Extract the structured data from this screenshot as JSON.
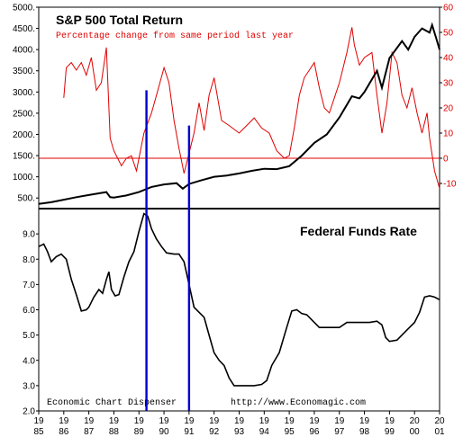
{
  "colors": {
    "background": "#ffffff",
    "axis": "#000000",
    "sp_index": "#000000",
    "total_return": "#e00000",
    "fed_funds": "#000000",
    "zero_line": "#e00000",
    "recession_markers": "#0000cc"
  },
  "chart_data": [
    {
      "type": "line",
      "title": "S&P 500 Total Return",
      "subtitle": "Percentage change from same period last year",
      "x_range": [
        1985.0,
        2001.0
      ],
      "left_axis": {
        "ylim": [
          250,
          5000
        ],
        "ticks": [
          "500.",
          "1000.",
          "1500.",
          "2000.",
          "2500.",
          "3000.",
          "3500.",
          "4000.",
          "4500.",
          "5000."
        ]
      },
      "right_axis": {
        "ylim": [
          -20,
          60
        ],
        "ticks": [
          "-10",
          "0",
          "10",
          "20",
          "30",
          "40",
          "50",
          "60"
        ]
      },
      "reference_line": {
        "axis": "right",
        "value": 0
      },
      "series": [
        {
          "key": "index",
          "axis": "left",
          "points": [
            [
              1985.0,
              360
            ],
            [
              1985.5,
              400
            ],
            [
              1986.0,
              460
            ],
            [
              1986.5,
              520
            ],
            [
              1987.0,
              570
            ],
            [
              1987.4,
              610
            ],
            [
              1987.7,
              640
            ],
            [
              1987.85,
              520
            ],
            [
              1988.0,
              510
            ],
            [
              1988.5,
              560
            ],
            [
              1989.0,
              640
            ],
            [
              1989.5,
              760
            ],
            [
              1990.0,
              820
            ],
            [
              1990.5,
              850
            ],
            [
              1990.75,
              720
            ],
            [
              1991.0,
              830
            ],
            [
              1991.5,
              920
            ],
            [
              1992.0,
              1000
            ],
            [
              1992.5,
              1030
            ],
            [
              1993.0,
              1080
            ],
            [
              1993.5,
              1140
            ],
            [
              1994.0,
              1190
            ],
            [
              1994.5,
              1180
            ],
            [
              1995.0,
              1250
            ],
            [
              1995.5,
              1500
            ],
            [
              1996.0,
              1800
            ],
            [
              1996.5,
              2000
            ],
            [
              1997.0,
              2400
            ],
            [
              1997.5,
              2900
            ],
            [
              1997.8,
              2850
            ],
            [
              1998.0,
              3000
            ],
            [
              1998.5,
              3500
            ],
            [
              1998.7,
              3100
            ],
            [
              1999.0,
              3800
            ],
            [
              1999.5,
              4200
            ],
            [
              1999.75,
              4000
            ],
            [
              2000.0,
              4300
            ],
            [
              2000.3,
              4500
            ],
            [
              2000.6,
              4400
            ],
            [
              2000.7,
              4580
            ],
            [
              2000.85,
              4300
            ],
            [
              2001.0,
              4000
            ]
          ]
        },
        {
          "key": "total_return",
          "axis": "right",
          "points": [
            [
              1986.0,
              24
            ],
            [
              1986.1,
              36
            ],
            [
              1986.3,
              38
            ],
            [
              1986.5,
              35
            ],
            [
              1986.7,
              38
            ],
            [
              1986.9,
              33
            ],
            [
              1987.1,
              40
            ],
            [
              1987.3,
              27
            ],
            [
              1987.5,
              30
            ],
            [
              1987.7,
              44
            ],
            [
              1987.85,
              8
            ],
            [
              1988.0,
              3
            ],
            [
              1988.3,
              -3
            ],
            [
              1988.5,
              0
            ],
            [
              1988.7,
              1
            ],
            [
              1988.9,
              -5
            ],
            [
              1989.2,
              10
            ],
            [
              1989.5,
              18
            ],
            [
              1989.7,
              25
            ],
            [
              1990.0,
              36
            ],
            [
              1990.2,
              30
            ],
            [
              1990.4,
              15
            ],
            [
              1990.6,
              4
            ],
            [
              1990.8,
              -6
            ],
            [
              1991.0,
              2
            ],
            [
              1991.2,
              10
            ],
            [
              1991.4,
              22
            ],
            [
              1991.6,
              11
            ],
            [
              1991.8,
              25
            ],
            [
              1992.0,
              32
            ],
            [
              1992.3,
              15
            ],
            [
              1992.6,
              13
            ],
            [
              1993.0,
              10
            ],
            [
              1993.3,
              13
            ],
            [
              1993.6,
              16
            ],
            [
              1993.9,
              12
            ],
            [
              1994.2,
              10
            ],
            [
              1994.5,
              3
            ],
            [
              1994.8,
              0
            ],
            [
              1995.0,
              1
            ],
            [
              1995.2,
              12
            ],
            [
              1995.4,
              25
            ],
            [
              1995.6,
              32
            ],
            [
              1995.8,
              35
            ],
            [
              1996.0,
              38
            ],
            [
              1996.2,
              28
            ],
            [
              1996.4,
              20
            ],
            [
              1996.6,
              18
            ],
            [
              1996.8,
              24
            ],
            [
              1997.0,
              30
            ],
            [
              1997.3,
              42
            ],
            [
              1997.5,
              52
            ],
            [
              1997.6,
              45
            ],
            [
              1997.8,
              37
            ],
            [
              1998.0,
              40
            ],
            [
              1998.3,
              42
            ],
            [
              1998.5,
              25
            ],
            [
              1998.7,
              10
            ],
            [
              1998.9,
              22
            ],
            [
              1999.1,
              42
            ],
            [
              1999.3,
              38
            ],
            [
              1999.5,
              25
            ],
            [
              1999.7,
              20
            ],
            [
              1999.9,
              28
            ],
            [
              2000.1,
              18
            ],
            [
              2000.3,
              10
            ],
            [
              2000.5,
              18
            ],
            [
              2000.6,
              8
            ],
            [
              2000.8,
              -5
            ],
            [
              2001.0,
              -12
            ]
          ]
        }
      ],
      "vertical_markers": [
        1989.3,
        1991.0
      ]
    },
    {
      "type": "line",
      "title": "Federal Funds Rate",
      "x_range": [
        1985.0,
        2001.0
      ],
      "ylim": [
        2.0,
        10.0
      ],
      "y_ticks": [
        "2.0",
        "3.0",
        "4.0",
        "5.0",
        "6.0",
        "7.0",
        "8.0",
        "9.0"
      ],
      "footer_left": "Economic Chart Dispenser",
      "footer_right": "http://www.Economagic.com",
      "x_tick_labels": [
        [
          "19",
          "85"
        ],
        [
          "19",
          "86"
        ],
        [
          "19",
          "87"
        ],
        [
          "19",
          "88"
        ],
        [
          "19",
          "89"
        ],
        [
          "19",
          "90"
        ],
        [
          "19",
          "91"
        ],
        [
          "19",
          "92"
        ],
        [
          "19",
          "93"
        ],
        [
          "19",
          "94"
        ],
        [
          "19",
          "95"
        ],
        [
          "19",
          "96"
        ],
        [
          "19",
          "97"
        ],
        [
          "19",
          "98"
        ],
        [
          "19",
          "99"
        ],
        [
          "20",
          "00"
        ],
        [
          "20",
          "01"
        ]
      ],
      "series": [
        {
          "key": "fed_funds",
          "points": [
            [
              1985.0,
              8.5
            ],
            [
              1985.2,
              8.6
            ],
            [
              1985.35,
              8.3
            ],
            [
              1985.5,
              7.9
            ],
            [
              1985.7,
              8.1
            ],
            [
              1985.9,
              8.2
            ],
            [
              1986.1,
              8.0
            ],
            [
              1986.3,
              7.2
            ],
            [
              1986.5,
              6.6
            ],
            [
              1986.7,
              5.95
            ],
            [
              1986.9,
              6.0
            ],
            [
              1987.0,
              6.1
            ],
            [
              1987.2,
              6.5
            ],
            [
              1987.4,
              6.8
            ],
            [
              1987.55,
              6.65
            ],
            [
              1987.7,
              7.2
            ],
            [
              1987.8,
              7.5
            ],
            [
              1987.9,
              6.8
            ],
            [
              1988.05,
              6.55
            ],
            [
              1988.2,
              6.6
            ],
            [
              1988.4,
              7.3
            ],
            [
              1988.6,
              7.9
            ],
            [
              1988.8,
              8.3
            ],
            [
              1989.0,
              9.1
            ],
            [
              1989.2,
              9.8
            ],
            [
              1989.35,
              9.7
            ],
            [
              1989.5,
              9.2
            ],
            [
              1989.7,
              8.8
            ],
            [
              1989.9,
              8.5
            ],
            [
              1990.1,
              8.25
            ],
            [
              1990.4,
              8.2
            ],
            [
              1990.6,
              8.2
            ],
            [
              1990.8,
              7.9
            ],
            [
              1991.0,
              7.0
            ],
            [
              1991.2,
              6.1
            ],
            [
              1991.4,
              5.9
            ],
            [
              1991.6,
              5.7
            ],
            [
              1991.8,
              5.0
            ],
            [
              1992.0,
              4.3
            ],
            [
              1992.2,
              4.0
            ],
            [
              1992.4,
              3.8
            ],
            [
              1992.6,
              3.3
            ],
            [
              1992.8,
              3.0
            ],
            [
              1993.0,
              3.0
            ],
            [
              1993.3,
              3.0
            ],
            [
              1993.6,
              3.0
            ],
            [
              1993.9,
              3.05
            ],
            [
              1994.1,
              3.2
            ],
            [
              1994.3,
              3.8
            ],
            [
              1994.6,
              4.3
            ],
            [
              1994.9,
              5.3
            ],
            [
              1995.1,
              5.95
            ],
            [
              1995.3,
              6.0
            ],
            [
              1995.5,
              5.85
            ],
            [
              1995.7,
              5.8
            ],
            [
              1996.0,
              5.5
            ],
            [
              1996.2,
              5.3
            ],
            [
              1996.5,
              5.3
            ],
            [
              1996.8,
              5.3
            ],
            [
              1997.0,
              5.3
            ],
            [
              1997.3,
              5.5
            ],
            [
              1997.6,
              5.5
            ],
            [
              1997.9,
              5.5
            ],
            [
              1998.2,
              5.5
            ],
            [
              1998.5,
              5.55
            ],
            [
              1998.7,
              5.4
            ],
            [
              1998.85,
              4.9
            ],
            [
              1999.0,
              4.75
            ],
            [
              1999.3,
              4.8
            ],
            [
              1999.5,
              5.0
            ],
            [
              1999.8,
              5.3
            ],
            [
              2000.0,
              5.5
            ],
            [
              2000.2,
              5.9
            ],
            [
              2000.4,
              6.5
            ],
            [
              2000.6,
              6.55
            ],
            [
              2000.8,
              6.5
            ],
            [
              2001.0,
              6.4
            ]
          ]
        }
      ],
      "vertical_markers": [
        1989.3,
        1991.0
      ]
    }
  ]
}
